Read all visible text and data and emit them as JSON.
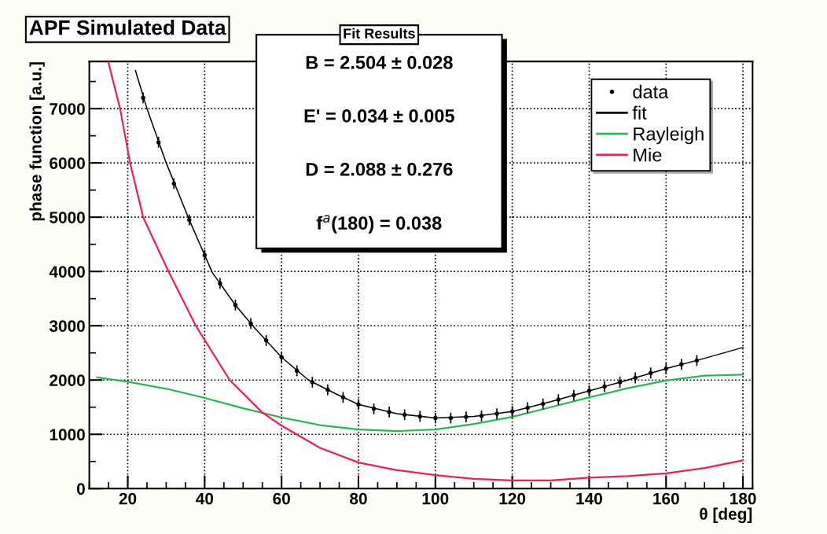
{
  "chart_data": {
    "type": "line",
    "title": "APF Simulated Data",
    "xlabel": "θ [deg]",
    "ylabel": "phase function [a.u.]",
    "annotations": [
      "Fit Results",
      "B = 2.504 ± 0.028",
      "E' = 0.034 ± 0.005",
      "D = 2.088 ± 0.276",
      "f$^{a}$(180) = 0.038"
    ],
    "xlim": [
      10,
      182.5
    ],
    "ylim": [
      0,
      7870
    ],
    "xticks": [
      20,
      40,
      60,
      80,
      100,
      120,
      140,
      160,
      180
    ],
    "yticks": [
      0,
      1000,
      2000,
      3000,
      4000,
      5000,
      6000,
      7000
    ],
    "grid": true,
    "legend": "top right",
    "series": [
      {
        "name": "data",
        "type": "scatter",
        "color": "#000000",
        "marker": "circle",
        "x": [
          24,
          28,
          32,
          36,
          40,
          44,
          48,
          52,
          56,
          60,
          64,
          68,
          72,
          76,
          80,
          84,
          88,
          92,
          96,
          100,
          104,
          108,
          112,
          116,
          120,
          124,
          128,
          132,
          136,
          140,
          144,
          148,
          152,
          156,
          160,
          164,
          168
        ],
        "values": [
          7200,
          6380,
          5620,
          4950,
          4300,
          3780,
          3380,
          3040,
          2730,
          2420,
          2170,
          1960,
          1820,
          1680,
          1550,
          1470,
          1410,
          1360,
          1330,
          1300,
          1300,
          1320,
          1340,
          1380,
          1420,
          1490,
          1560,
          1640,
          1720,
          1800,
          1880,
          1960,
          2040,
          2130,
          2210,
          2290,
          2360
        ],
        "errors": [
          100,
          100,
          100,
          100,
          100,
          100,
          100,
          100,
          100,
          100,
          100,
          100,
          100,
          100,
          100,
          100,
          100,
          100,
          100,
          100,
          100,
          100,
          100,
          100,
          100,
          100,
          100,
          100,
          100,
          100,
          100,
          100,
          100,
          100,
          100,
          100,
          100
        ]
      },
      {
        "name": "fit",
        "color": "#000000",
        "x": [
          22,
          25,
          30,
          36,
          42,
          48,
          53,
          60,
          67,
          74,
          80,
          90,
          100,
          110,
          120,
          130,
          140,
          150,
          160,
          170,
          180
        ],
        "values": [
          7700,
          7000,
          6000,
          4950,
          3980,
          3380,
          2960,
          2420,
          2000,
          1750,
          1550,
          1380,
          1300,
          1330,
          1420,
          1600,
          1800,
          2000,
          2210,
          2400,
          2600
        ]
      },
      {
        "name": "Rayleigh",
        "color": "#2eb35a",
        "x": [
          12,
          20,
          30,
          40,
          50,
          60,
          70,
          80,
          90,
          100,
          110,
          120,
          130,
          140,
          150,
          160,
          170,
          180
        ],
        "values": [
          2050,
          1970,
          1840,
          1670,
          1480,
          1310,
          1170,
          1090,
          1060,
          1090,
          1190,
          1320,
          1500,
          1680,
          1850,
          1990,
          2080,
          2100
        ]
      },
      {
        "name": "Mie",
        "color": "#ee2050",
        "x": [
          14.9,
          18,
          20.6,
          24,
          30.6,
          37.7,
          46.5,
          55,
          60,
          70,
          80,
          90,
          100,
          110,
          120,
          130,
          140,
          150,
          160,
          170,
          180
        ],
        "values": [
          7870,
          7000,
          6000,
          5000,
          4000,
          3000,
          2000,
          1400,
          1160,
          750,
          480,
          340,
          250,
          180,
          150,
          150,
          200,
          230,
          280,
          380,
          520
        ]
      }
    ]
  }
}
